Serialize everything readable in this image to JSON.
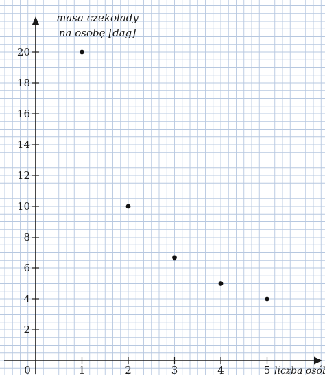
{
  "chart_data": {
    "type": "scatter",
    "title": "",
    "ylabel_lines": [
      "masa czekolady",
      "na osobę [dag]"
    ],
    "xlabel": "liczba osób",
    "origin_label": "0",
    "x_ticks": [
      1,
      2,
      3,
      4,
      5
    ],
    "y_ticks": [
      2,
      4,
      6,
      8,
      10,
      12,
      14,
      16,
      18,
      20
    ],
    "xlim": [
      0,
      5.7
    ],
    "ylim": [
      0,
      22.5
    ],
    "grid": true,
    "colors": {
      "grid": "#b7c8e0",
      "axes": "#1a1a1a",
      "points": "#111111"
    },
    "points": [
      {
        "x": 1,
        "y": 20
      },
      {
        "x": 2,
        "y": 10
      },
      {
        "x": 3,
        "y": 6.67
      },
      {
        "x": 4,
        "y": 5
      },
      {
        "x": 5,
        "y": 4
      }
    ]
  }
}
